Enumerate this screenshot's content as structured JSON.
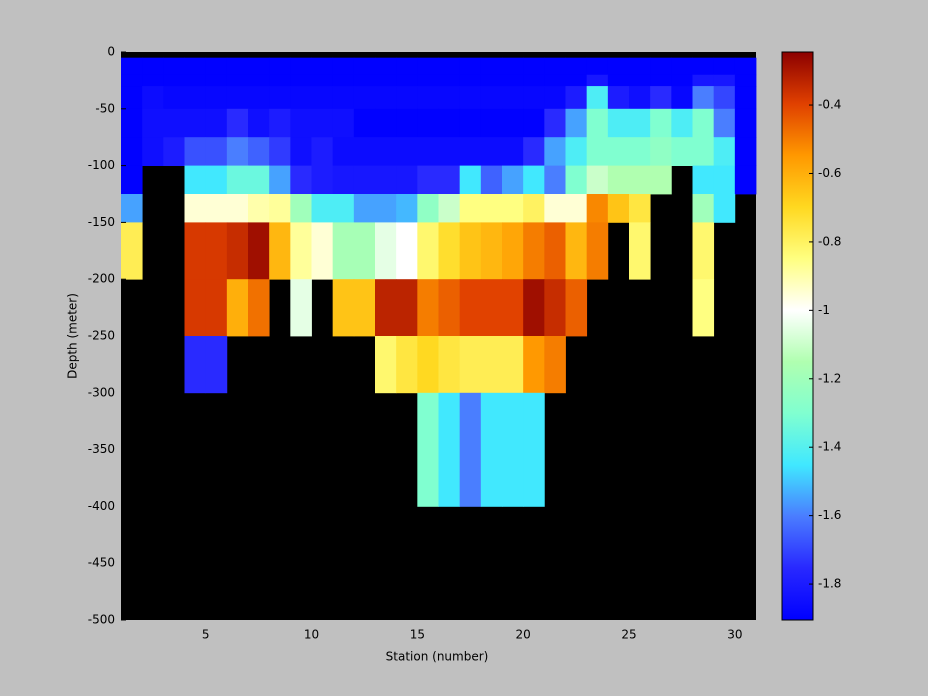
{
  "chart_data": {
    "type": "heatmap",
    "xlabel": "Station (number)",
    "ylabel": "Depth (meter)",
    "x_edges": [
      1,
      2,
      3,
      4,
      5,
      6,
      7,
      8,
      9,
      10,
      11,
      12,
      13,
      14,
      15,
      16,
      17,
      18,
      19,
      20,
      21,
      22,
      23,
      24,
      25,
      26,
      27,
      28,
      29,
      30,
      31
    ],
    "y_edges": [
      -5,
      -20,
      -30,
      -50,
      -75,
      -100,
      -125,
      -150,
      -200,
      -250,
      -300,
      -400
    ],
    "z": [
      [
        -1.9,
        -1.9,
        -1.9,
        -1.9,
        -1.9,
        -1.9,
        -1.9,
        -1.9,
        -1.9,
        -1.9,
        -1.9,
        -1.9,
        -1.9,
        -1.9,
        -1.9,
        -1.9,
        -1.9,
        -1.9,
        -1.9,
        -1.9,
        -1.9,
        -1.9,
        -1.9,
        -1.9,
        -1.9,
        -1.9,
        -1.9,
        -1.9,
        -1.9,
        -1.9
      ],
      [
        -1.9,
        -1.9,
        -1.9,
        -1.9,
        -1.9,
        -1.9,
        -1.9,
        -1.9,
        -1.9,
        -1.9,
        -1.9,
        -1.9,
        -1.9,
        -1.9,
        -1.9,
        -1.9,
        -1.9,
        -1.9,
        -1.9,
        -1.9,
        -1.9,
        -1.9,
        -1.82,
        -1.9,
        -1.9,
        -1.9,
        -1.9,
        -1.82,
        -1.82,
        -1.9
      ],
      [
        -1.9,
        -1.86,
        -1.88,
        -1.88,
        -1.88,
        -1.88,
        -1.88,
        -1.88,
        -1.88,
        -1.88,
        -1.88,
        -1.88,
        -1.88,
        -1.88,
        -1.88,
        -1.88,
        -1.88,
        -1.88,
        -1.88,
        -1.88,
        -1.88,
        -1.8,
        -1.42,
        -1.8,
        -1.85,
        -1.75,
        -1.88,
        -1.6,
        -1.7,
        -1.9
      ],
      [
        -1.9,
        -1.85,
        -1.85,
        -1.85,
        -1.85,
        -1.75,
        -1.85,
        -1.8,
        -1.85,
        -1.85,
        -1.85,
        -1.9,
        -1.9,
        -1.9,
        -1.9,
        -1.9,
        -1.9,
        -1.9,
        -1.9,
        -1.9,
        -1.75,
        -1.55,
        -1.3,
        -1.42,
        -1.42,
        -1.3,
        -1.42,
        -1.3,
        -1.6,
        -1.9
      ],
      [
        -1.9,
        -1.85,
        -1.8,
        -1.68,
        -1.68,
        -1.6,
        -1.65,
        -1.72,
        -1.85,
        -1.8,
        -1.86,
        -1.86,
        -1.86,
        -1.86,
        -1.86,
        -1.86,
        -1.86,
        -1.86,
        -1.86,
        -1.75,
        -1.55,
        -1.42,
        -1.3,
        -1.3,
        -1.3,
        -1.25,
        -1.3,
        -1.3,
        -1.42,
        -1.9
      ],
      [
        -1.9,
        null,
        null,
        -1.45,
        -1.45,
        -1.35,
        -1.35,
        -1.55,
        -1.75,
        -1.8,
        -1.82,
        -1.82,
        -1.82,
        -1.82,
        -1.75,
        -1.75,
        -1.45,
        -1.65,
        -1.55,
        -1.45,
        -1.6,
        -1.3,
        -1.1,
        -1.15,
        -1.15,
        -1.15,
        null,
        -1.45,
        -1.45,
        -1.9
      ],
      [
        -1.55,
        null,
        null,
        -0.95,
        -0.95,
        -0.95,
        -0.9,
        -0.88,
        -1.2,
        -1.42,
        -1.42,
        -1.55,
        -1.55,
        -1.52,
        -1.25,
        -1.1,
        -0.85,
        -0.85,
        -0.85,
        -0.8,
        -0.95,
        -0.95,
        -0.52,
        -0.65,
        -0.75,
        null,
        null,
        -1.2,
        -1.45,
        null
      ],
      [
        -0.78,
        null,
        null,
        -0.38,
        -0.38,
        -0.35,
        -0.28,
        -0.62,
        -0.88,
        -0.95,
        -1.18,
        -1.18,
        -1.05,
        -1.0,
        -0.82,
        -0.72,
        -0.65,
        -0.62,
        -0.58,
        -0.5,
        -0.45,
        -0.62,
        -0.5,
        null,
        -0.82,
        null,
        null,
        -0.82,
        null,
        null
      ],
      [
        null,
        null,
        null,
        -0.38,
        -0.38,
        -0.6,
        -0.48,
        null,
        -1.05,
        null,
        -0.65,
        -0.65,
        -0.33,
        -0.33,
        -0.5,
        -0.45,
        -0.4,
        -0.4,
        -0.4,
        -0.28,
        -0.35,
        -0.45,
        null,
        null,
        null,
        null,
        null,
        -0.85,
        null,
        null
      ],
      [
        null,
        null,
        null,
        -1.75,
        -1.75,
        null,
        null,
        null,
        null,
        null,
        null,
        null,
        -0.82,
        -0.75,
        -0.7,
        -0.75,
        -0.78,
        -0.78,
        -0.78,
        -0.55,
        -0.5,
        null,
        null,
        null,
        null,
        null,
        null,
        null,
        null,
        null
      ],
      [
        null,
        null,
        null,
        null,
        null,
        null,
        null,
        null,
        null,
        null,
        null,
        null,
        null,
        null,
        -1.3,
        -1.45,
        -1.6,
        -1.45,
        -1.45,
        -1.45,
        null,
        null,
        null,
        null,
        null,
        null,
        null,
        null,
        null,
        null
      ]
    ],
    "xlim": [
      1,
      31
    ],
    "ylim": [
      -500,
      0
    ],
    "xticks": [
      5,
      10,
      15,
      20,
      25,
      30
    ],
    "yticks": [
      0,
      -50,
      -100,
      -150,
      -200,
      -250,
      -300,
      -350,
      -400,
      -450,
      -500
    ],
    "clim": [
      -1.905,
      -0.245
    ],
    "cticks": [
      -0.4,
      -0.6,
      -0.8,
      -1,
      -1.2,
      -1.4,
      -1.6,
      -1.8
    ],
    "colormap": [
      "#0000ff",
      "#2828ff",
      "#4a7cff",
      "#40e8ff",
      "#80ffd0",
      "#b0ffb0",
      "#ffffff",
      "#ffff80",
      "#ffd820",
      "#ff9800",
      "#e04000",
      "#8c0000"
    ],
    "missing_color": "#000000",
    "background": "#c0c0c0"
  }
}
